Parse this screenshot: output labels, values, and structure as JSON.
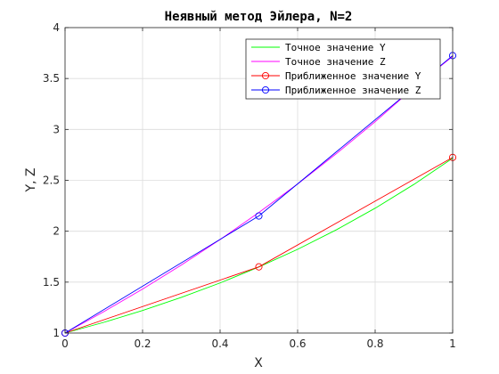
{
  "chart_data": {
    "type": "line",
    "title": "Неявный метод Эйлера, N=2",
    "xlabel": "X",
    "ylabel": "Y, Z",
    "xlim": [
      0,
      1
    ],
    "ylim": [
      1,
      4
    ],
    "xticks": [
      "0",
      "0.2",
      "0.4",
      "0.6",
      "0.8",
      "1"
    ],
    "yticks": [
      "1",
      "1.5",
      "2",
      "2.5",
      "3",
      "3.5",
      "4"
    ],
    "grid": true,
    "legend_position": "top-right",
    "series": [
      {
        "name": "Точное значение Y",
        "color": "#00ff00",
        "marker": "none",
        "x": [
          0,
          0.1,
          0.2,
          0.3,
          0.4,
          0.5,
          0.6,
          0.7,
          0.8,
          0.9,
          1.0
        ],
        "y": [
          1.0,
          1.105,
          1.221,
          1.35,
          1.492,
          1.649,
          1.822,
          2.014,
          2.226,
          2.46,
          2.718
        ]
      },
      {
        "name": "Точное значение Z",
        "color": "#ff00ff",
        "marker": "none",
        "x": [
          0,
          0.1,
          0.2,
          0.3,
          0.4,
          0.5,
          0.6,
          0.7,
          0.8,
          0.9,
          1.0
        ],
        "y": [
          1.0,
          1.21,
          1.432,
          1.668,
          1.918,
          2.184,
          2.464,
          2.762,
          3.076,
          3.41,
          3.718
        ]
      },
      {
        "name": "Приближенное значение Y",
        "color": "#ff0000",
        "marker": "circle",
        "x": [
          0,
          0.5,
          1.0
        ],
        "y": [
          1.0,
          1.65,
          2.725
        ]
      },
      {
        "name": "Приближенное значение Z",
        "color": "#0000ff",
        "marker": "circle",
        "x": [
          0,
          0.5,
          1.0
        ],
        "y": [
          1.0,
          2.15,
          3.725
        ]
      }
    ]
  }
}
